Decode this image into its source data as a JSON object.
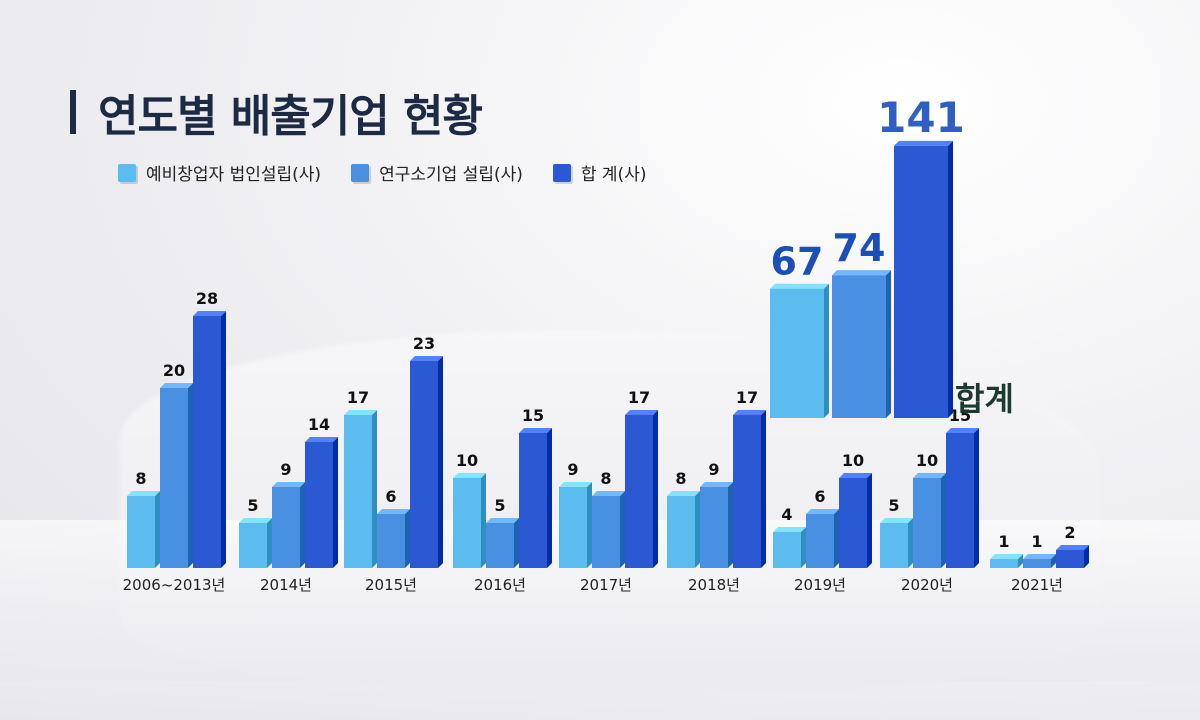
{
  "title": "연도별 배출기업 현황",
  "colors": {
    "series1": "#5cbcef",
    "series2": "#4a90e2",
    "series3": "#2b59d3",
    "title": "#1c2a44",
    "hap_text": "#1c3a2f"
  },
  "chart_data": {
    "type": "bar",
    "categories": [
      "2006~2013년",
      "2014년",
      "2015년",
      "2016년",
      "2017년",
      "2018년",
      "2019년",
      "2020년",
      "2021년"
    ],
    "series": [
      {
        "name": "예비창업자 법인설립(사)",
        "values": [
          8,
          5,
          17,
          10,
          9,
          8,
          4,
          5,
          1
        ]
      },
      {
        "name": "연구소기업 설립(사)",
        "values": [
          20,
          9,
          6,
          5,
          8,
          9,
          6,
          10,
          1
        ]
      },
      {
        "name": "합 계(사)",
        "values": [
          28,
          14,
          23,
          15,
          17,
          17,
          10,
          15,
          2
        ]
      }
    ],
    "totals": {
      "label": "합계",
      "values": [
        67,
        74,
        141
      ]
    },
    "ylim": [
      0,
      30
    ]
  }
}
